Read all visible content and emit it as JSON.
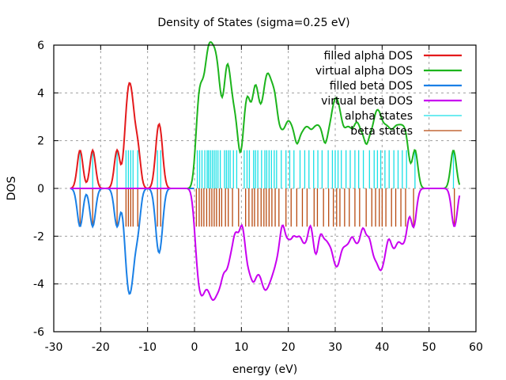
{
  "chart_data": {
    "type": "line",
    "title": "Density of States (sigma=0.25 eV)",
    "xlabel": "energy (eV)",
    "ylabel": "DOS",
    "xlim": [
      -30,
      60
    ],
    "ylim": [
      -6,
      6
    ],
    "xticks": [
      -30,
      -20,
      -10,
      0,
      10,
      20,
      30,
      40,
      50,
      60
    ],
    "yticks": [
      -6,
      -4,
      -2,
      0,
      2,
      4,
      6
    ],
    "grid": true,
    "legend_position": "top-right",
    "sigma_eV": 0.25,
    "state_height": 1.6,
    "colors": {
      "filled_alpha": "#e41a1c",
      "virtual_alpha": "#1cb41c",
      "filled_beta": "#1a80e6",
      "virtual_beta": "#c800f0",
      "alpha_states": "#19e0e6",
      "beta_states": "#b84a10"
    },
    "series": [
      {
        "name": "filled alpha DOS",
        "key": "filled_alpha"
      },
      {
        "name": "virtual alpha DOS",
        "key": "virtual_alpha"
      },
      {
        "name": "filled beta DOS",
        "key": "filled_beta"
      },
      {
        "name": "virtual beta DOS",
        "key": "virtual_beta"
      },
      {
        "name": "alpha states",
        "key": "alpha_states"
      },
      {
        "name": "beta states",
        "key": "beta_states"
      }
    ],
    "filled_states_eV": [
      -24.4,
      -21.7,
      -16.5,
      -14.6,
      -14.1,
      -13.6,
      -13.1,
      -12.1,
      -7.9,
      -7.2
    ],
    "virtual_alpha_states_eV": [
      0.6,
      1.1,
      1.6,
      2.2,
      2.7,
      3.0,
      3.4,
      3.8,
      4.2,
      4.6,
      5.0,
      5.5,
      6.4,
      6.8,
      7.2,
      7.6,
      8.3,
      9.0,
      10.6,
      11.2,
      11.7,
      12.6,
      13.0,
      13.5,
      14.3,
      15.0,
      15.4,
      15.9,
      16.4,
      17.0,
      17.5,
      18.5,
      19.5,
      20.3,
      21.2,
      22.5,
      23.5,
      24.4,
      25.4,
      26.3,
      27.2,
      28.5,
      29.4,
      30.0,
      30.6,
      31.3,
      32.3,
      33.2,
      34.2,
      35.0,
      36.0,
      37.3,
      38.3,
      39.0,
      39.7,
      40.6,
      41.5,
      42.5,
      43.4,
      44.3,
      45.2,
      47.0,
      55.2
    ],
    "virtual_beta_states_eV": [
      0.4,
      1.0,
      1.5,
      2.0,
      2.6,
      3.2,
      3.7,
      4.2,
      4.7,
      5.3,
      5.8,
      6.6,
      7.2,
      8.1,
      9.4,
      10.9,
      11.6,
      12.3,
      12.8,
      13.5,
      14.2,
      14.8,
      15.3,
      15.9,
      16.5,
      17.2,
      18.0,
      19.5,
      20.6,
      21.8,
      23.0,
      24.0,
      25.5,
      26.2,
      27.5,
      28.6,
      29.6,
      30.3,
      31.0,
      32.0,
      33.0,
      34.2,
      35.2,
      36.6,
      37.8,
      38.6,
      39.4,
      40.0,
      40.8,
      42.0,
      42.9,
      44.0,
      45.0,
      46.7,
      55.4
    ]
  }
}
